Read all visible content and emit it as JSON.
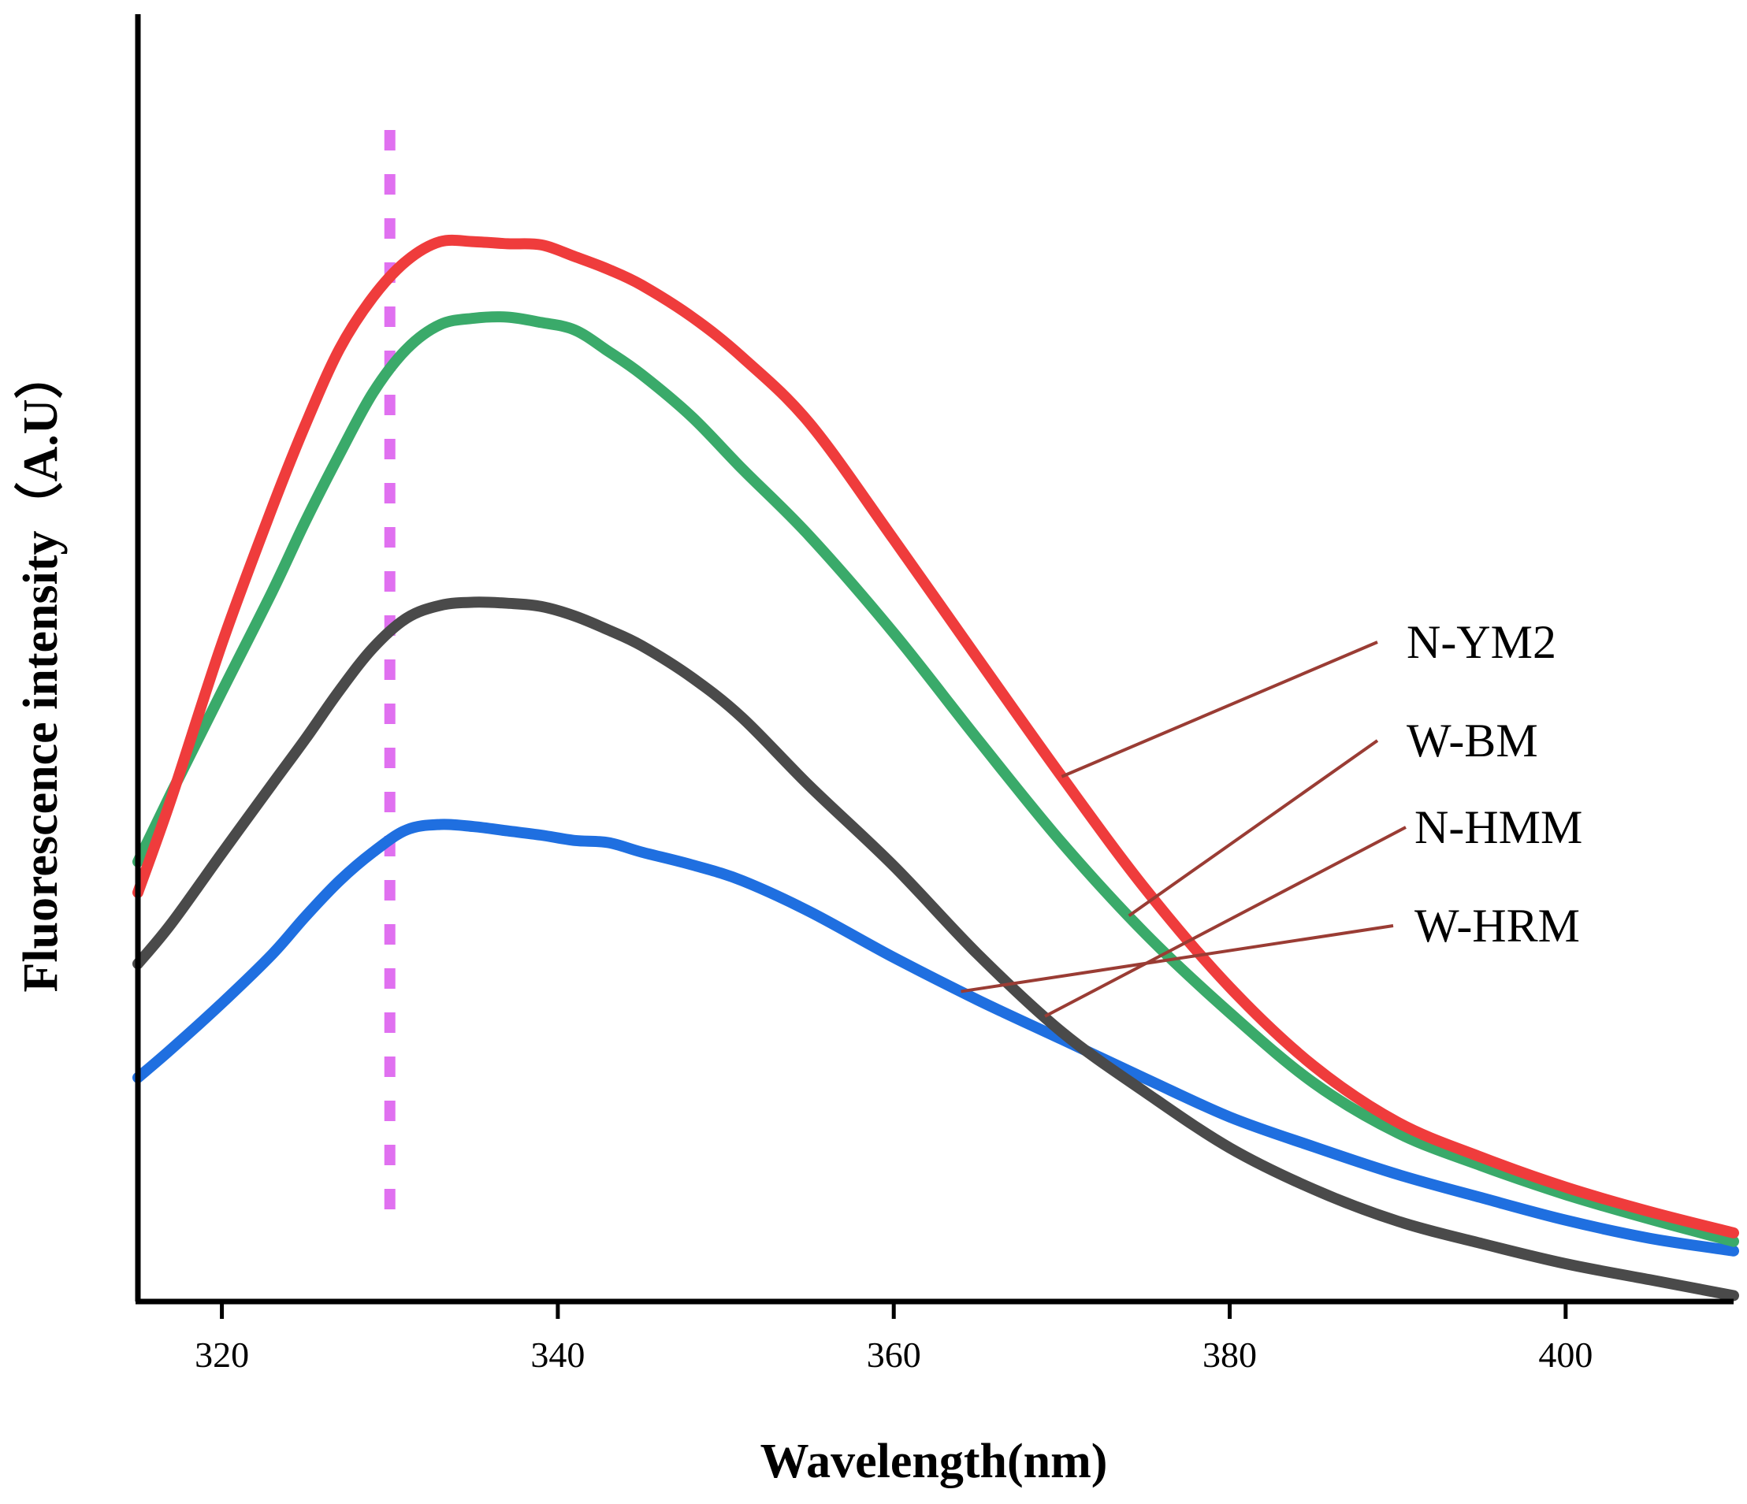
{
  "chart_data": {
    "type": "line",
    "title": "",
    "xlabel": "Wavelength(nm)",
    "ylabel": "Fluorescence intensity（A.U）",
    "xlim": [
      315,
      410
    ],
    "ylim": [
      0,
      100
    ],
    "xticks": [
      320,
      340,
      360,
      380,
      400
    ],
    "grid": false,
    "reference_line": {
      "x": 330,
      "color": "#e070f0",
      "style": "dashed"
    },
    "leader_color": "#9a3c34",
    "series": [
      {
        "name": "N-YM2",
        "color": "#ef3c3c",
        "label_anchor": 370,
        "x": [
          315,
          317,
          320,
          323,
          325,
          327,
          329,
          331,
          333,
          335,
          337,
          339,
          341,
          343,
          345,
          348,
          351,
          355,
          360,
          365,
          370,
          375,
          380,
          385,
          390,
          395,
          400,
          405,
          410
        ],
        "y": [
          34.6,
          43.5,
          58.0,
          70.8,
          78.7,
          85.7,
          90.6,
          94.0,
          95.8,
          95.8,
          95.6,
          95.5,
          94.4,
          93.2,
          91.7,
          88.7,
          84.9,
          78.7,
          67.8,
          56.6,
          45.5,
          34.9,
          25.7,
          18.3,
          13.0,
          9.7,
          6.9,
          4.6,
          2.6
        ]
      },
      {
        "name": "W-BM",
        "color": "#3aaa6a",
        "label_anchor": 374,
        "x": [
          315,
          317,
          320,
          323,
          325,
          327,
          329,
          331,
          333,
          335,
          337,
          339,
          341,
          343,
          345,
          348,
          351,
          355,
          360,
          365,
          370,
          375,
          380,
          385,
          390,
          395,
          400,
          405,
          410
        ],
        "y": [
          37.5,
          44.0,
          53.5,
          62.9,
          69.6,
          75.8,
          81.6,
          85.7,
          88.0,
          88.6,
          88.7,
          88.2,
          87.5,
          85.5,
          83.3,
          79.3,
          74.4,
          68.1,
          59.0,
          49.0,
          39.3,
          30.7,
          23.3,
          16.7,
          12.0,
          8.9,
          6.2,
          3.9,
          1.8
        ]
      },
      {
        "name": "N-HMM",
        "color": "#4a4a4a",
        "label_anchor": 369,
        "x": [
          315,
          317,
          320,
          323,
          325,
          327,
          329,
          331,
          333,
          335,
          337,
          339,
          341,
          343,
          345,
          348,
          351,
          355,
          360,
          365,
          370,
          375,
          380,
          385,
          390,
          395,
          400,
          405,
          410
        ],
        "y": [
          27.9,
          31.7,
          38.3,
          44.8,
          49.1,
          53.6,
          57.6,
          60.4,
          61.6,
          61.9,
          61.8,
          61.5,
          60.6,
          59.3,
          57.8,
          54.8,
          51.0,
          44.6,
          37.1,
          28.8,
          21.5,
          15.8,
          10.6,
          6.7,
          3.7,
          1.6,
          -0.3,
          -1.8,
          -3.3
        ]
      },
      {
        "name": "W-HRM",
        "color": "#1f6fe0",
        "label_anchor": 364,
        "x": [
          315,
          317,
          320,
          323,
          325,
          327,
          329,
          331,
          333,
          335,
          337,
          339,
          341,
          343,
          345,
          348,
          351,
          355,
          360,
          365,
          370,
          375,
          380,
          385,
          390,
          395,
          400,
          405,
          410
        ],
        "y": [
          17.2,
          19.9,
          24.2,
          28.8,
          32.4,
          35.7,
          38.4,
          40.5,
          41.0,
          40.8,
          40.4,
          40.0,
          39.5,
          39.3,
          38.4,
          37.2,
          35.7,
          32.8,
          28.5,
          24.5,
          20.8,
          17.1,
          13.5,
          10.7,
          8.1,
          5.9,
          3.8,
          2.1,
          0.9
        ]
      }
    ]
  },
  "label_positions": [
    {
      "series": "N-YM2"
    },
    {
      "series": "W-BM"
    },
    {
      "series": "N-HMM"
    },
    {
      "series": "W-HRM"
    }
  ]
}
